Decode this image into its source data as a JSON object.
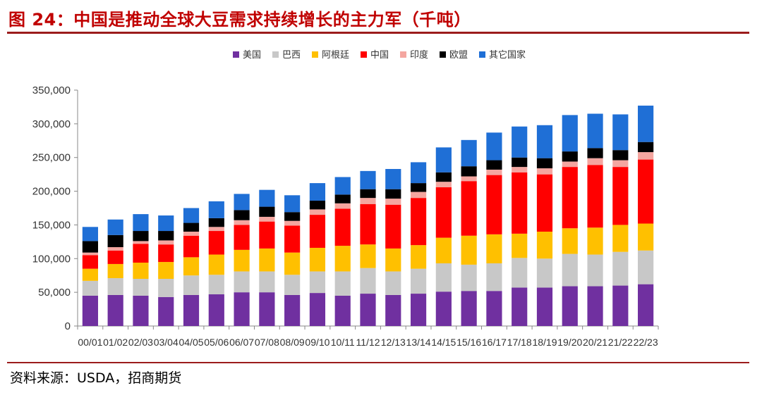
{
  "figure": {
    "title": "图 24：中国是推动全球大豆需求持续增长的主力军（千吨）",
    "source": "资料来源：USDA，招商期货"
  },
  "chart_data": {
    "type": "bar",
    "stacked": true,
    "categories": [
      "00/01",
      "01/02",
      "02/03",
      "03/04",
      "04/05",
      "05/06",
      "06/07",
      "07/08",
      "08/09",
      "09/10",
      "10/11",
      "11/12",
      "12/13",
      "13/14",
      "14/15",
      "15/16",
      "16/17",
      "17/18",
      "18/19",
      "19/20",
      "20/21",
      "21/22",
      "22/23"
    ],
    "ylim": [
      0,
      350000
    ],
    "yticks": [
      0,
      50000,
      100000,
      150000,
      200000,
      250000,
      300000,
      350000
    ],
    "ytick_labels": [
      "0",
      "50,000",
      "100,000",
      "150,000",
      "200,000",
      "250,000",
      "300,000",
      "350,000"
    ],
    "legend_position": "top",
    "grid": false,
    "series": [
      {
        "name": "美国",
        "color": "#7030a0",
        "values": [
          45000,
          46000,
          45000,
          43000,
          46000,
          47000,
          50000,
          50000,
          46000,
          49000,
          45000,
          48000,
          46000,
          48000,
          51000,
          52000,
          52000,
          57000,
          57000,
          59000,
          59000,
          60000,
          62000
        ]
      },
      {
        "name": "巴西",
        "color": "#c8c8c8",
        "values": [
          22000,
          25000,
          25000,
          27000,
          29000,
          29000,
          31000,
          31000,
          30000,
          32000,
          36000,
          38000,
          35000,
          37000,
          42000,
          39000,
          41000,
          44000,
          43000,
          48000,
          47000,
          50000,
          50000
        ]
      },
      {
        "name": "阿根廷",
        "color": "#ffc000",
        "values": [
          18000,
          21000,
          24000,
          25000,
          27000,
          30000,
          32000,
          34000,
          33000,
          35000,
          38000,
          35000,
          34000,
          35000,
          38000,
          43000,
          43000,
          36000,
          40000,
          38000,
          40000,
          40000,
          40000
        ]
      },
      {
        "name": "中国",
        "color": "#ff0000",
        "values": [
          20000,
          20000,
          28000,
          26000,
          32000,
          35000,
          37000,
          40000,
          40000,
          49000,
          55000,
          60000,
          65000,
          70000,
          75000,
          81000,
          88000,
          91000,
          85000,
          91000,
          93000,
          86000,
          95000
        ]
      },
      {
        "name": "印度",
        "color": "#f4a6a0",
        "values": [
          4000,
          5000,
          4000,
          6000,
          6000,
          6000,
          7000,
          7000,
          7000,
          8000,
          8000,
          9000,
          9000,
          9000,
          8000,
          7000,
          8000,
          8000,
          9000,
          8000,
          10000,
          10000,
          11000
        ]
      },
      {
        "name": "欧盟",
        "color": "#000000",
        "values": [
          17000,
          18000,
          15000,
          14000,
          13000,
          13000,
          15000,
          15000,
          13000,
          13000,
          13000,
          13000,
          14000,
          13000,
          14000,
          15000,
          14000,
          14000,
          15000,
          15000,
          15000,
          15000,
          15000
        ]
      },
      {
        "name": "其它国家",
        "color": "#1f6fd6",
        "values": [
          21000,
          23000,
          25000,
          23000,
          22000,
          25000,
          24000,
          25000,
          25000,
          26000,
          26000,
          27000,
          30000,
          31000,
          37000,
          39000,
          41000,
          46000,
          49000,
          54000,
          51000,
          53000,
          54000
        ]
      }
    ]
  }
}
